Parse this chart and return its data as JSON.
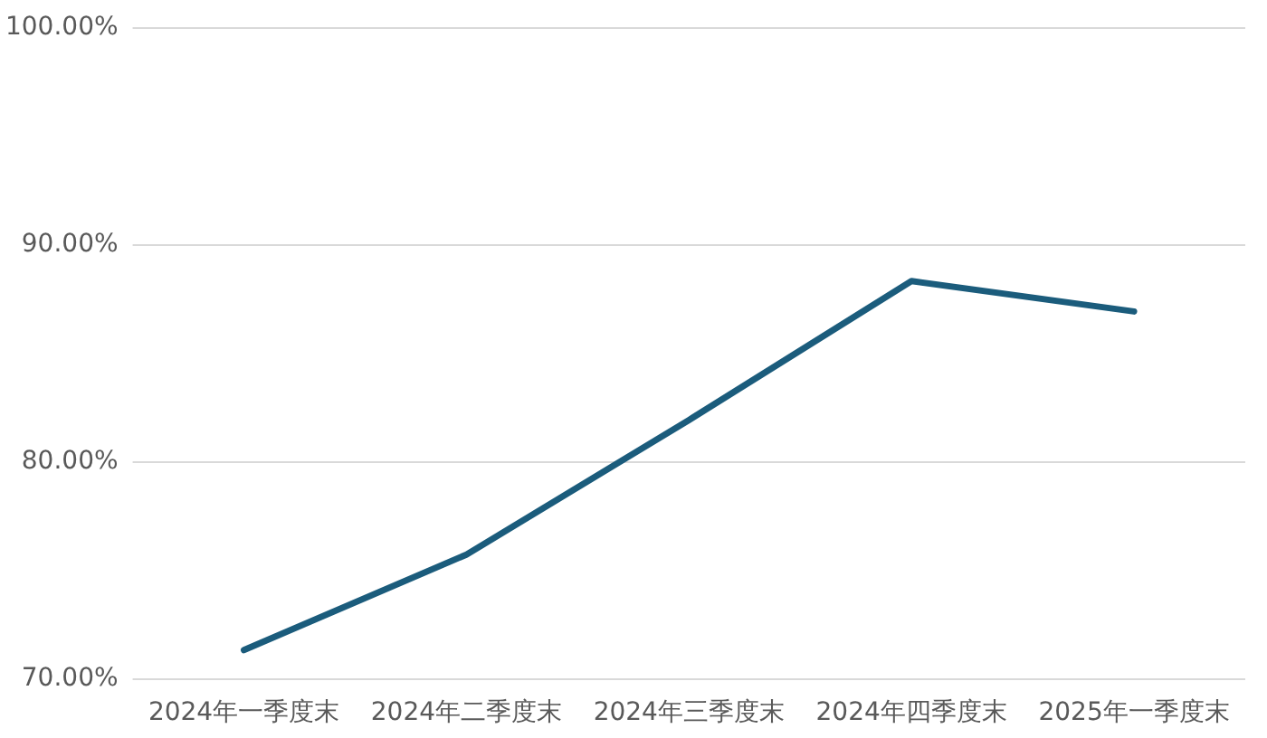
{
  "chart_data": {
    "type": "line",
    "categories": [
      "2024年一季度末",
      "2024年二季度末",
      "2024年三季度末",
      "2024年四季度末",
      "2025年一季度末"
    ],
    "values": [
      71.3,
      75.7,
      81.9,
      88.3,
      86.9
    ],
    "color": "#1b5c7c",
    "marker": "none",
    "grid": "y",
    "ylim": [
      70,
      100
    ],
    "yticks": [
      {
        "value": 70,
        "label": "70.00%"
      },
      {
        "value": 80,
        "label": "80.00%"
      },
      {
        "value": 90,
        "label": "90.00%"
      },
      {
        "value": 100,
        "label": "100.00%"
      }
    ]
  }
}
